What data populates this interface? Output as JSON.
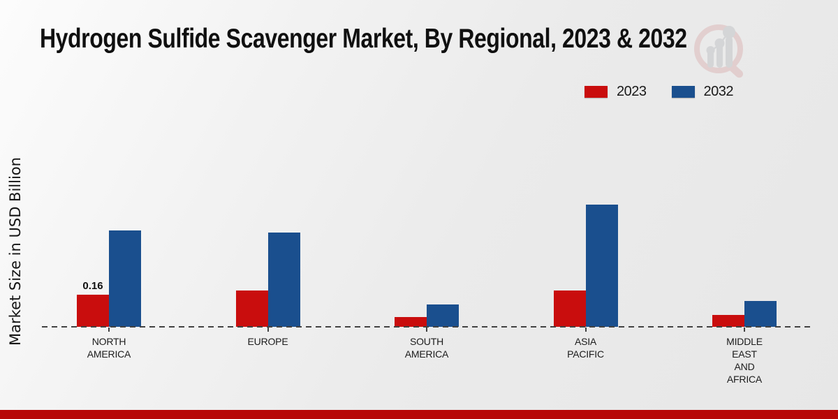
{
  "chart_data": {
    "type": "bar",
    "title": "Hydrogen Sulfide Scavenger Market, By Regional, 2023 & 2032",
    "ylabel": "Market Size in USD Billion",
    "xlabel": "",
    "categories": [
      "NORTH AMERICA",
      "EUROPE",
      "SOUTH AMERICA",
      "ASIA PACIFIC",
      "MIDDLE EAST AND AFRICA"
    ],
    "tick_lines": [
      [
        "NORTH",
        "AMERICA"
      ],
      [
        "EUROPE"
      ],
      [
        "SOUTH",
        "AMERICA"
      ],
      [
        "ASIA",
        "PACIFIC"
      ],
      [
        "MIDDLE",
        "EAST",
        "AND",
        "AFRICA"
      ]
    ],
    "series": [
      {
        "name": "2023",
        "color": "#c90d0d",
        "values": [
          0.16,
          0.18,
          0.05,
          0.18,
          0.06
        ]
      },
      {
        "name": "2032",
        "color": "#1a4f8e",
        "values": [
          0.48,
          0.47,
          0.11,
          0.61,
          0.13
        ]
      }
    ],
    "annotations": [
      {
        "text": "0.16",
        "series_index": 0,
        "category_index": 0
      }
    ],
    "ylim": [
      0,
      0.7
    ],
    "grid": false,
    "legend_position": "top-right",
    "y_axis_ticks_visible": false
  },
  "colors": {
    "bar_2023": "#c90d0d",
    "bar_2032": "#1a4f8e",
    "footer_bar": "#b70808",
    "axis_dash": "#424242",
    "background": "#ebebeb"
  },
  "icons": {
    "logo": "market-research-future-magnifier-bar-chart"
  }
}
